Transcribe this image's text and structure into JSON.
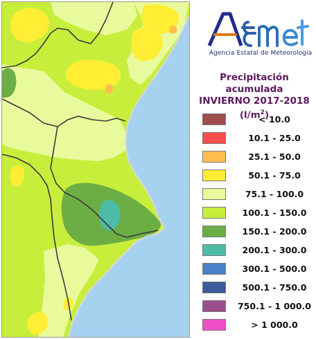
{
  "logo": {
    "wordmark": "AEmet",
    "subtitle": "Agencia Estatal de Meteorología"
  },
  "title": {
    "line1": "Precipitación acumulada",
    "line2": "INVIERNO 2017-2018",
    "unit_base": "(l/m",
    "unit_sup": "2",
    "unit_end": ")"
  },
  "legend": [
    {
      "label": "< 10.0",
      "color": "#a04d4d"
    },
    {
      "label": "10.1 - 25.0",
      "color": "#ff4d4d"
    },
    {
      "label": "25.1 - 50.0",
      "color": "#ffbe4d"
    },
    {
      "label": "50.1 - 75.0",
      "color": "#ffee33"
    },
    {
      "label": "75.1 - 100.0",
      "color": "#e8fa9c"
    },
    {
      "label": "100.1 - 150.0",
      "color": "#c8ee3c"
    },
    {
      "label": "150.1 - 200.0",
      "color": "#6cae44"
    },
    {
      "label": "200.1 - 300.0",
      "color": "#4cbca8"
    },
    {
      "label": "300.1 - 500.0",
      "color": "#4a80c4"
    },
    {
      "label": "500.1 - 750.0",
      "color": "#3d5a9a"
    },
    {
      "label": "750.1 - 1 000.0",
      "color": "#9c4e8c"
    },
    {
      "label": "> 1 000.0",
      "color": "#ee4ec6"
    }
  ],
  "map_colors": {
    "sea": "#a6d2f0",
    "sea_near_coast": "#8ec4ec",
    "border": "#3a3a3a",
    "coast": "#d8d8d8"
  }
}
